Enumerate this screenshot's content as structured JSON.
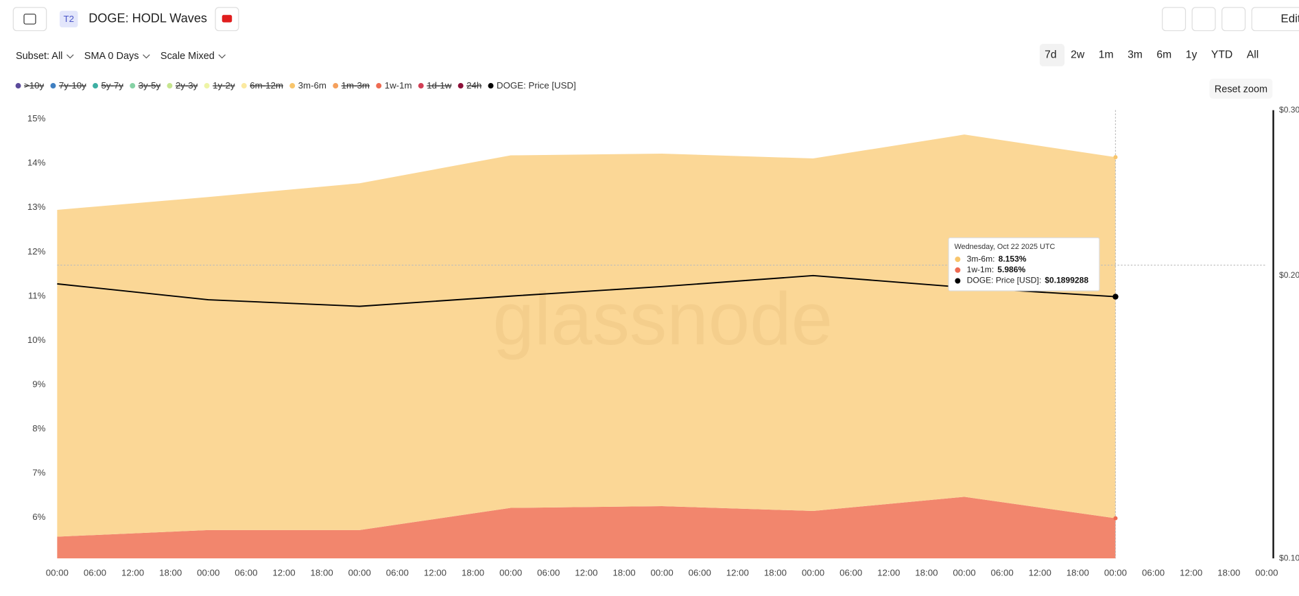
{
  "ui": {
    "badge": "T2",
    "title": "DOGE: HODL Waves",
    "controls": [
      "Subset: All",
      "SMA 0 Days",
      "Scale Mixed"
    ],
    "ranges": [
      "7d",
      "2w",
      "1m",
      "3m",
      "6m",
      "1y",
      "YTD",
      "All"
    ],
    "edit": "Edit",
    "reset_zoom": "Reset zoom",
    "watermark": "glassnode"
  },
  "chart_data": {
    "type": "area",
    "stacked": true,
    "y2_log": true,
    "legend": [
      {
        "name": ">10y",
        "color": "#5b4a9b",
        "hidden": true
      },
      {
        "name": "7y-10y",
        "color": "#3f7fc1",
        "hidden": true
      },
      {
        "name": "5y-7y",
        "color": "#3dafa3",
        "hidden": true
      },
      {
        "name": "3y-5y",
        "color": "#86d2a5",
        "hidden": true
      },
      {
        "name": "2y-3y",
        "color": "#c6e58e",
        "hidden": true
      },
      {
        "name": "1y-2y",
        "color": "#eef4a6",
        "hidden": true
      },
      {
        "name": "6m-12m",
        "color": "#fbe9a0",
        "hidden": true
      },
      {
        "name": "3m-6m",
        "color": "#f8c56c",
        "hidden": false
      },
      {
        "name": "1m-3m",
        "color": "#f5a05c",
        "hidden": true
      },
      {
        "name": "1w-1m",
        "color": "#ee6b52",
        "hidden": false
      },
      {
        "name": "1d-1w",
        "color": "#d23f55",
        "hidden": true
      },
      {
        "name": "24h",
        "color": "#8c0f38",
        "hidden": true
      },
      {
        "name": "DOGE: Price [USD]",
        "color": "#000000",
        "hidden": false
      }
    ],
    "x": [
      0,
      24,
      48,
      72,
      96,
      120,
      144,
      168
    ],
    "series": [
      {
        "name": "1w-1m",
        "color": "#f2866d",
        "values": [
          5.57,
          5.72,
          5.72,
          6.22,
          6.26,
          6.15,
          6.47,
          5.986
        ],
        "value_labels": [
          null,
          null,
          null,
          null,
          null,
          null,
          null,
          "5.986%"
        ]
      },
      {
        "name": "3m-6m",
        "color": "#fbd796",
        "values": [
          7.38,
          7.52,
          7.83,
          7.96,
          7.96,
          7.96,
          8.18,
          8.153
        ],
        "value_labels": [
          null,
          null,
          null,
          null,
          null,
          null,
          null,
          "8.153%"
        ]
      },
      {
        "name": "DOGE: Price [USD]",
        "color": "#000000",
        "axis": "y2",
        "values": [
          0.196,
          0.1885,
          0.1855,
          0.1902,
          0.1947,
          0.2,
          0.1943,
          0.1899288
        ],
        "value_labels": [
          null,
          null,
          null,
          null,
          null,
          null,
          null,
          "$0.1899288"
        ]
      }
    ],
    "tooltip": {
      "date": "Wednesday, Oct 22 2025 UTC",
      "index": 7,
      "series": [
        1,
        0,
        2
      ]
    },
    "xlim": [
      0,
      192
    ],
    "xticks": [
      {
        "value": 0,
        "label": "00:00"
      },
      {
        "value": 6,
        "label": "06:00"
      },
      {
        "value": 12,
        "label": "12:00"
      },
      {
        "value": 18,
        "label": "18:00"
      },
      {
        "value": 24,
        "label": "00:00"
      },
      {
        "value": 30,
        "label": "06:00"
      },
      {
        "value": 36,
        "label": "12:00"
      },
      {
        "value": 42,
        "label": "18:00"
      },
      {
        "value": 48,
        "label": "00:00"
      },
      {
        "value": 54,
        "label": "06:00"
      },
      {
        "value": 60,
        "label": "12:00"
      },
      {
        "value": 66,
        "label": "18:00"
      },
      {
        "value": 72,
        "label": "00:00"
      },
      {
        "value": 78,
        "label": "06:00"
      },
      {
        "value": 84,
        "label": "12:00"
      },
      {
        "value": 90,
        "label": "18:00"
      },
      {
        "value": 96,
        "label": "00:00"
      },
      {
        "value": 102,
        "label": "06:00"
      },
      {
        "value": 108,
        "label": "12:00"
      },
      {
        "value": 114,
        "label": "18:00"
      },
      {
        "value": 120,
        "label": "00:00"
      },
      {
        "value": 126,
        "label": "06:00"
      },
      {
        "value": 132,
        "label": "12:00"
      },
      {
        "value": 138,
        "label": "18:00"
      },
      {
        "value": 144,
        "label": "00:00"
      },
      {
        "value": 150,
        "label": "06:00"
      },
      {
        "value": 156,
        "label": "12:00"
      },
      {
        "value": 162,
        "label": "18:00"
      },
      {
        "value": 168,
        "label": "00:00"
      },
      {
        "value": 174,
        "label": "06:00"
      },
      {
        "value": 180,
        "label": "12:00"
      },
      {
        "value": 186,
        "label": "18:00"
      },
      {
        "value": 192,
        "label": "00:00"
      }
    ],
    "ylim": [
      5.08,
      15.2
    ],
    "yticks": [
      {
        "value": 6,
        "label": "6%"
      },
      {
        "value": 7,
        "label": "7%"
      },
      {
        "value": 8,
        "label": "8%"
      },
      {
        "value": 9,
        "label": "9%"
      },
      {
        "value": 10,
        "label": "10%"
      },
      {
        "value": 11,
        "label": "11%"
      },
      {
        "value": 12,
        "label": "12%"
      },
      {
        "value": 13,
        "label": "13%"
      },
      {
        "value": 14,
        "label": "14%"
      },
      {
        "value": 15,
        "label": "15%"
      }
    ],
    "y2lim": [
      0.1,
      0.3
    ],
    "y2ticks": [
      {
        "value": 0.1,
        "label": "$0.10"
      },
      {
        "value": 0.2,
        "label": "$0.20"
      },
      {
        "value": 0.3,
        "label": "$0.30"
      }
    ]
  }
}
